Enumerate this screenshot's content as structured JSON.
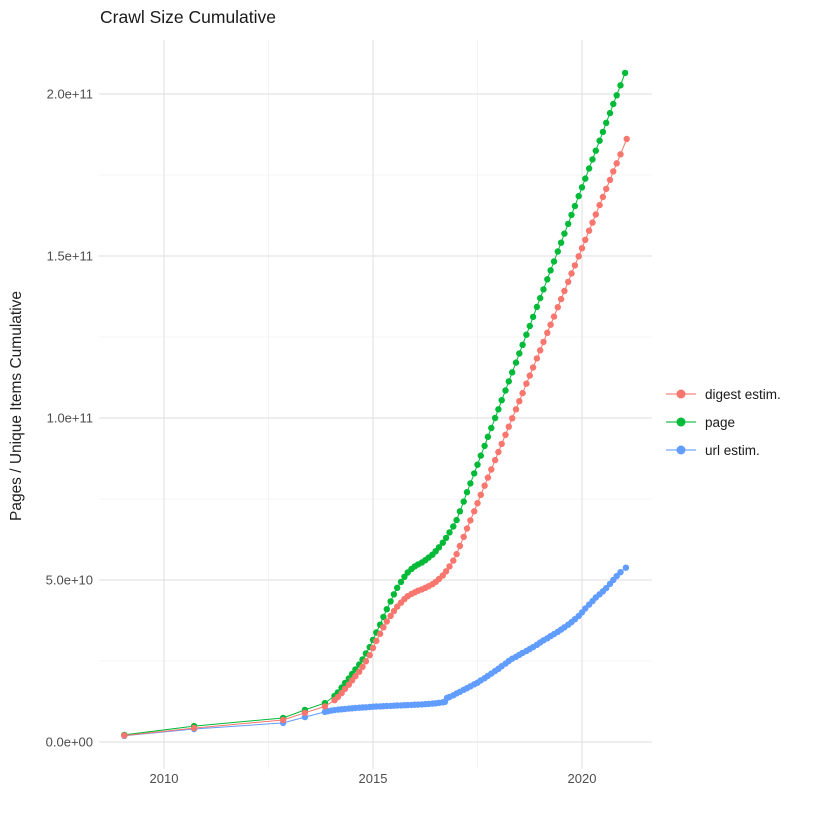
{
  "title": "Crawl Size Cumulative",
  "y_axis_title": "Pages / Unique Items Cumulative",
  "legend": {
    "items": [
      {
        "label": "digest estim.",
        "color": "#F8766D"
      },
      {
        "label": "page",
        "color": "#00BA38"
      },
      {
        "label": "url estim.",
        "color": "#619CFF"
      }
    ]
  },
  "chart_data": {
    "type": "line",
    "title": "Crawl Size Cumulative",
    "xlabel": "",
    "ylabel": "Pages / Unique Items Cumulative",
    "x_unit": "year (decimal)",
    "y_unit": "count; point values stored in billions (1e9)",
    "xlim": [
      2008.45,
      2021.7
    ],
    "ylim": [
      0,
      206500000000.0
    ],
    "grid": true,
    "legend_position": "right",
    "x_ticks": {
      "major": [
        2010,
        2015,
        2020
      ],
      "minor": [
        2012.5,
        2017.5
      ],
      "labels": [
        "2010",
        "2015",
        "2020"
      ]
    },
    "y_ticks": {
      "major_e9": [
        0,
        50,
        100,
        150,
        200
      ],
      "minor_e9": [
        25,
        75,
        125,
        175
      ],
      "labels": [
        "0.0e+00",
        "5.0e+10",
        "1.0e+11",
        "1.5e+11",
        "2.0e+11"
      ]
    },
    "style": {
      "background": "#FFFFFF",
      "grid_major": "#E4E4E4",
      "grid_minor": "#F1F1F1",
      "tick_label_color": "#4D4D4D",
      "point_radius": 3.2
    },
    "series": [
      {
        "name": "digest estim.",
        "color": "#F8766D",
        "points_e9": [
          [
            2009.05,
            2.0
          ],
          [
            2010.72,
            4.3
          ],
          [
            2012.85,
            6.8
          ],
          [
            2013.37,
            9.0
          ],
          [
            2013.85,
            11.0
          ],
          [
            2014.08,
            12.9
          ],
          [
            2014.16,
            13.9
          ],
          [
            2014.25,
            15.1
          ],
          [
            2014.33,
            16.4
          ],
          [
            2014.42,
            17.7
          ],
          [
            2014.5,
            19.0
          ],
          [
            2014.58,
            20.3
          ],
          [
            2014.67,
            21.7
          ],
          [
            2014.75,
            23.2
          ],
          [
            2014.83,
            24.9
          ],
          [
            2014.92,
            26.8
          ],
          [
            2015.0,
            29.0
          ],
          [
            2015.08,
            31.2
          ],
          [
            2015.17,
            33.4
          ],
          [
            2015.25,
            35.4
          ],
          [
            2015.33,
            37.2
          ],
          [
            2015.42,
            38.9
          ],
          [
            2015.5,
            40.4
          ],
          [
            2015.58,
            41.8
          ],
          [
            2015.67,
            43.0
          ],
          [
            2015.75,
            44.1
          ],
          [
            2015.83,
            45.0
          ],
          [
            2015.92,
            45.7
          ],
          [
            2016.0,
            46.2
          ],
          [
            2016.08,
            46.7
          ],
          [
            2016.17,
            47.1
          ],
          [
            2016.25,
            47.6
          ],
          [
            2016.33,
            48.1
          ],
          [
            2016.42,
            48.7
          ],
          [
            2016.5,
            49.4
          ],
          [
            2016.58,
            50.3
          ],
          [
            2016.67,
            51.4
          ],
          [
            2016.75,
            52.7
          ],
          [
            2016.83,
            54.2
          ],
          [
            2016.92,
            56.0
          ],
          [
            2017.0,
            58.0
          ],
          [
            2017.08,
            60.5
          ],
          [
            2017.17,
            63.3
          ],
          [
            2017.25,
            65.9
          ],
          [
            2017.33,
            68.4
          ],
          [
            2017.42,
            71.2
          ],
          [
            2017.5,
            73.7
          ],
          [
            2017.58,
            76.3
          ],
          [
            2017.67,
            79.1
          ],
          [
            2017.75,
            81.6
          ],
          [
            2017.83,
            84.1
          ],
          [
            2017.92,
            87.0
          ],
          [
            2018.0,
            89.5
          ],
          [
            2018.08,
            92.0
          ],
          [
            2018.17,
            94.8
          ],
          [
            2018.25,
            97.3
          ],
          [
            2018.33,
            99.9
          ],
          [
            2018.42,
            102.7
          ],
          [
            2018.5,
            105.2
          ],
          [
            2018.58,
            107.7
          ],
          [
            2018.67,
            110.6
          ],
          [
            2018.75,
            113.1
          ],
          [
            2018.83,
            115.6
          ],
          [
            2018.92,
            118.4
          ],
          [
            2019.0,
            120.9
          ],
          [
            2019.08,
            123.5
          ],
          [
            2019.17,
            126.3
          ],
          [
            2019.25,
            128.8
          ],
          [
            2019.33,
            131.3
          ],
          [
            2019.42,
            134.2
          ],
          [
            2019.5,
            136.7
          ],
          [
            2019.58,
            139.2
          ],
          [
            2019.67,
            142.0
          ],
          [
            2019.75,
            144.6
          ],
          [
            2019.83,
            147.1
          ],
          [
            2019.92,
            149.9
          ],
          [
            2020.0,
            152.4
          ],
          [
            2020.08,
            155.0
          ],
          [
            2020.17,
            157.8
          ],
          [
            2020.25,
            160.3
          ],
          [
            2020.33,
            162.8
          ],
          [
            2020.42,
            165.7
          ],
          [
            2020.5,
            168.2
          ],
          [
            2020.58,
            170.7
          ],
          [
            2020.67,
            173.5
          ],
          [
            2020.75,
            176.1
          ],
          [
            2020.83,
            178.6
          ],
          [
            2020.92,
            181.4
          ],
          [
            2021.07,
            186.1
          ]
        ]
      },
      {
        "name": "page",
        "color": "#00BA38",
        "points_e9": [
          [
            2009.05,
            2.2
          ],
          [
            2010.72,
            4.9
          ],
          [
            2012.85,
            7.4
          ],
          [
            2013.37,
            9.9
          ],
          [
            2013.85,
            12.0
          ],
          [
            2014.08,
            14.2
          ],
          [
            2014.16,
            15.3
          ],
          [
            2014.25,
            16.8
          ],
          [
            2014.33,
            18.2
          ],
          [
            2014.42,
            19.6
          ],
          [
            2014.5,
            21.0
          ],
          [
            2014.58,
            22.4
          ],
          [
            2014.67,
            23.9
          ],
          [
            2014.75,
            25.5
          ],
          [
            2014.83,
            27.3
          ],
          [
            2014.92,
            29.3
          ],
          [
            2015.0,
            31.5
          ],
          [
            2015.08,
            33.8
          ],
          [
            2015.17,
            36.2
          ],
          [
            2015.25,
            38.6
          ],
          [
            2015.33,
            41.0
          ],
          [
            2015.42,
            43.4
          ],
          [
            2015.5,
            45.6
          ],
          [
            2015.58,
            47.6
          ],
          [
            2015.67,
            49.4
          ],
          [
            2015.75,
            51.0
          ],
          [
            2015.83,
            52.3
          ],
          [
            2015.92,
            53.4
          ],
          [
            2016.0,
            54.2
          ],
          [
            2016.08,
            54.8
          ],
          [
            2016.17,
            55.4
          ],
          [
            2016.25,
            56.1
          ],
          [
            2016.33,
            56.9
          ],
          [
            2016.42,
            57.8
          ],
          [
            2016.5,
            58.9
          ],
          [
            2016.58,
            60.1
          ],
          [
            2016.67,
            61.5
          ],
          [
            2016.75,
            63.0
          ],
          [
            2016.83,
            64.7
          ],
          [
            2016.92,
            66.5
          ],
          [
            2017.0,
            68.5
          ],
          [
            2017.08,
            71.2
          ],
          [
            2017.17,
            74.2
          ],
          [
            2017.25,
            77.1
          ],
          [
            2017.33,
            79.8
          ],
          [
            2017.42,
            82.9
          ],
          [
            2017.5,
            85.6
          ],
          [
            2017.58,
            88.4
          ],
          [
            2017.67,
            91.4
          ],
          [
            2017.75,
            94.2
          ],
          [
            2017.83,
            96.9
          ],
          [
            2017.92,
            100.0
          ],
          [
            2018.0,
            102.7
          ],
          [
            2018.08,
            105.5
          ],
          [
            2018.17,
            108.5
          ],
          [
            2018.25,
            111.3
          ],
          [
            2018.33,
            114.1
          ],
          [
            2018.42,
            117.1
          ],
          [
            2018.5,
            119.9
          ],
          [
            2018.58,
            122.6
          ],
          [
            2018.67,
            125.7
          ],
          [
            2018.75,
            128.4
          ],
          [
            2018.83,
            131.2
          ],
          [
            2018.92,
            134.3
          ],
          [
            2019.0,
            137.0
          ],
          [
            2019.08,
            139.7
          ],
          [
            2019.17,
            142.8
          ],
          [
            2019.25,
            145.6
          ],
          [
            2019.33,
            148.3
          ],
          [
            2019.42,
            151.4
          ],
          [
            2019.5,
            154.1
          ],
          [
            2019.58,
            156.9
          ],
          [
            2019.67,
            159.9
          ],
          [
            2019.75,
            162.7
          ],
          [
            2019.83,
            165.4
          ],
          [
            2019.92,
            168.5
          ],
          [
            2020.0,
            171.2
          ],
          [
            2020.08,
            173.9
          ],
          [
            2020.17,
            177.0
          ],
          [
            2020.25,
            179.8
          ],
          [
            2020.33,
            182.5
          ],
          [
            2020.42,
            185.6
          ],
          [
            2020.5,
            188.3
          ],
          [
            2020.58,
            191.1
          ],
          [
            2020.67,
            194.1
          ],
          [
            2020.75,
            196.9
          ],
          [
            2020.83,
            199.6
          ],
          [
            2020.92,
            202.7
          ],
          [
            2021.03,
            206.5
          ]
        ]
      },
      {
        "name": "url estim.",
        "color": "#619CFF",
        "points_e9": [
          [
            2009.05,
            1.9
          ],
          [
            2010.72,
            4.0
          ],
          [
            2012.85,
            5.9
          ],
          [
            2013.37,
            7.7
          ],
          [
            2013.85,
            9.3
          ],
          [
            2013.92,
            9.5
          ],
          [
            2014.0,
            9.7
          ],
          [
            2014.08,
            9.85
          ],
          [
            2014.17,
            10.0
          ],
          [
            2014.25,
            10.1
          ],
          [
            2014.33,
            10.2
          ],
          [
            2014.42,
            10.3
          ],
          [
            2014.5,
            10.4
          ],
          [
            2014.58,
            10.5
          ],
          [
            2014.67,
            10.6
          ],
          [
            2014.75,
            10.65
          ],
          [
            2014.83,
            10.7
          ],
          [
            2014.92,
            10.8
          ],
          [
            2015.0,
            10.9
          ],
          [
            2015.08,
            10.95
          ],
          [
            2015.17,
            11.0
          ],
          [
            2015.25,
            11.05
          ],
          [
            2015.33,
            11.1
          ],
          [
            2015.42,
            11.15
          ],
          [
            2015.5,
            11.2
          ],
          [
            2015.58,
            11.25
          ],
          [
            2015.67,
            11.3
          ],
          [
            2015.75,
            11.35
          ],
          [
            2015.83,
            11.4
          ],
          [
            2015.92,
            11.45
          ],
          [
            2016.0,
            11.5
          ],
          [
            2016.08,
            11.55
          ],
          [
            2016.17,
            11.6
          ],
          [
            2016.25,
            11.7
          ],
          [
            2016.33,
            11.75
          ],
          [
            2016.42,
            11.85
          ],
          [
            2016.5,
            11.95
          ],
          [
            2016.58,
            12.1
          ],
          [
            2016.67,
            12.25
          ],
          [
            2016.72,
            12.4
          ],
          [
            2016.77,
            13.6
          ],
          [
            2016.83,
            13.9
          ],
          [
            2016.92,
            14.4
          ],
          [
            2017.0,
            15.0
          ],
          [
            2017.08,
            15.5
          ],
          [
            2017.17,
            16.1
          ],
          [
            2017.25,
            16.6
          ],
          [
            2017.33,
            17.2
          ],
          [
            2017.42,
            17.8
          ],
          [
            2017.5,
            18.3
          ],
          [
            2017.58,
            19.0
          ],
          [
            2017.67,
            19.7
          ],
          [
            2017.75,
            20.4
          ],
          [
            2017.83,
            21.1
          ],
          [
            2017.92,
            21.9
          ],
          [
            2018.0,
            22.6
          ],
          [
            2018.08,
            23.4
          ],
          [
            2018.17,
            24.2
          ],
          [
            2018.25,
            25.0
          ],
          [
            2018.33,
            25.7
          ],
          [
            2018.42,
            26.3
          ],
          [
            2018.5,
            26.9
          ],
          [
            2018.58,
            27.5
          ],
          [
            2018.67,
            28.1
          ],
          [
            2018.75,
            28.7
          ],
          [
            2018.83,
            29.3
          ],
          [
            2018.92,
            30.0
          ],
          [
            2019.0,
            30.7
          ],
          [
            2019.08,
            31.4
          ],
          [
            2019.17,
            32.0
          ],
          [
            2019.25,
            32.7
          ],
          [
            2019.33,
            33.3
          ],
          [
            2019.42,
            34.0
          ],
          [
            2019.5,
            34.7
          ],
          [
            2019.58,
            35.4
          ],
          [
            2019.67,
            36.2
          ],
          [
            2019.75,
            37.0
          ],
          [
            2019.83,
            37.9
          ],
          [
            2019.92,
            38.9
          ],
          [
            2020.0,
            40.0
          ],
          [
            2020.08,
            41.2
          ],
          [
            2020.17,
            42.4
          ],
          [
            2020.25,
            43.5
          ],
          [
            2020.33,
            44.6
          ],
          [
            2020.42,
            45.6
          ],
          [
            2020.5,
            46.5
          ],
          [
            2020.58,
            47.5
          ],
          [
            2020.67,
            48.8
          ],
          [
            2020.75,
            50.0
          ],
          [
            2020.83,
            51.2
          ],
          [
            2020.92,
            52.4
          ],
          [
            2021.05,
            53.8
          ]
        ]
      }
    ]
  }
}
